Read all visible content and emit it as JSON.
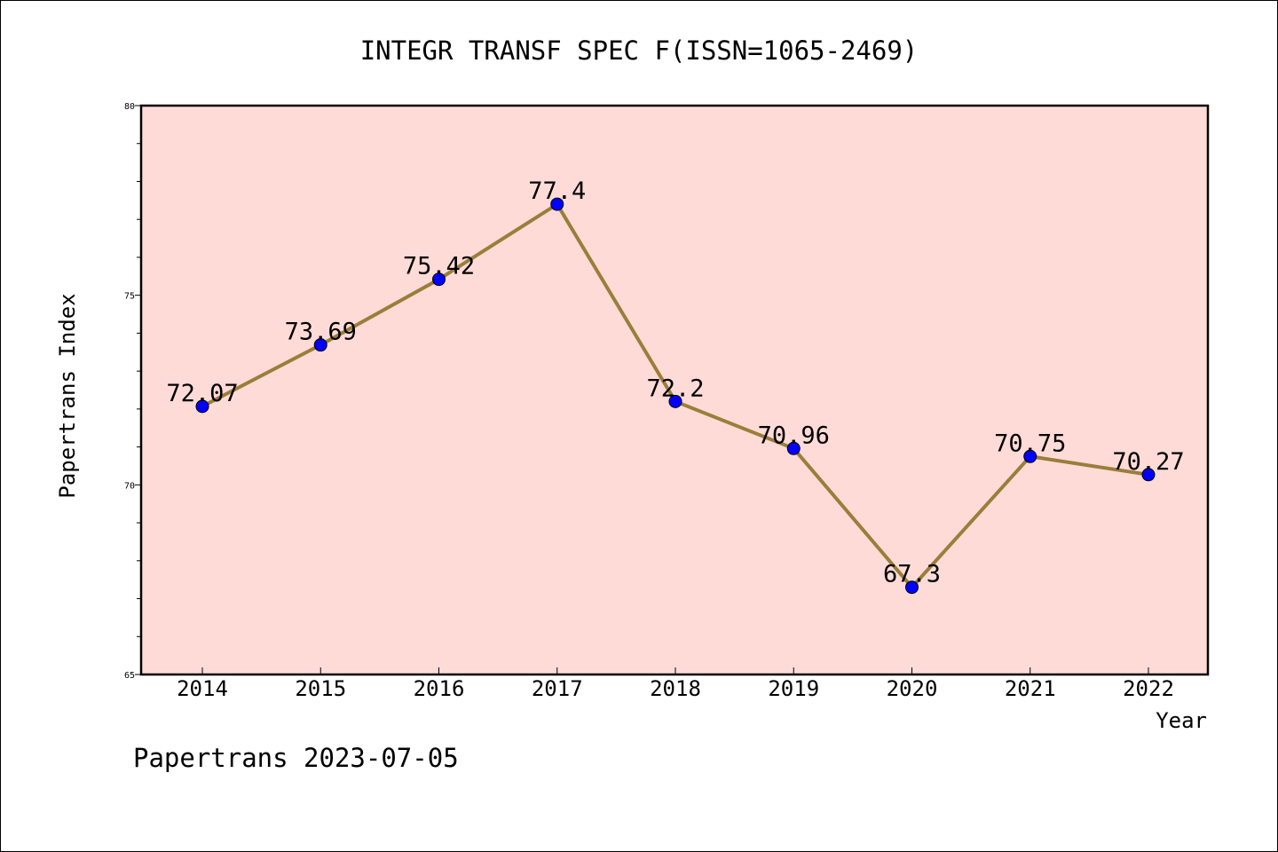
{
  "chart_data": {
    "type": "line",
    "title": "INTEGR TRANSF SPEC F(ISSN=1065-2469)",
    "xlabel": "Year",
    "ylabel": "Papertrans Index",
    "categories": [
      "2014",
      "2015",
      "2016",
      "2017",
      "2018",
      "2019",
      "2020",
      "2021",
      "2022"
    ],
    "values": [
      72.07,
      73.69,
      75.42,
      77.4,
      72.2,
      70.96,
      67.3,
      70.75,
      70.27
    ],
    "data_labels": [
      "72.07",
      "73.69",
      "75.42",
      "77.4",
      "72.2",
      "70.96",
      "67.3",
      "70.75",
      "70.27"
    ],
    "ylim": [
      65,
      80
    ],
    "yticks": [
      65,
      70,
      75,
      80
    ],
    "ytick_labels": [
      "65",
      "70",
      "75",
      "80"
    ],
    "grid": false,
    "legend": "none",
    "colors": {
      "plot_background": "#ffdbd8",
      "line": "#9a7e3a",
      "marker": "#0000ff"
    }
  },
  "footer": "Papertrans 2023-07-05"
}
